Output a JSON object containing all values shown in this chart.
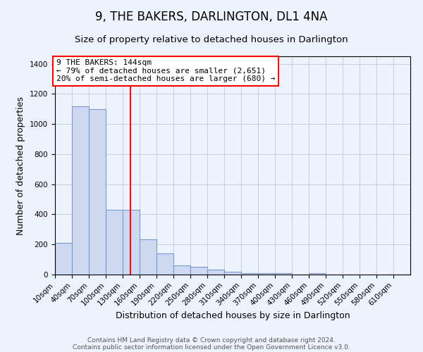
{
  "title": "9, THE BAKERS, DARLINGTON, DL1 4NA",
  "subtitle": "Size of property relative to detached houses in Darlington",
  "xlabel": "Distribution of detached houses by size in Darlington",
  "ylabel": "Number of detached properties",
  "bar_color": "#ccd9f0",
  "bar_edge_color": "#7799cc",
  "background_color": "#eef2fc",
  "grid_color": "#c8cce0",
  "red_line_x": 144,
  "annotation_title": "9 THE BAKERS: 144sqm",
  "annotation_line1": "← 79% of detached houses are smaller (2,651)",
  "annotation_line2": "20% of semi-detached houses are larger (680) →",
  "footer1": "Contains HM Land Registry data © Crown copyright and database right 2024.",
  "footer2": "Contains public sector information licensed under the Open Government Licence v3.0.",
  "bin_starts": [
    10,
    40,
    70,
    100,
    130,
    160,
    190,
    220,
    250,
    280,
    310,
    340,
    370,
    400,
    430,
    460,
    490,
    520,
    550,
    580,
    610
  ],
  "bin_width": 30,
  "counts": [
    210,
    1120,
    1100,
    430,
    430,
    235,
    140,
    60,
    50,
    35,
    20,
    10,
    10,
    10,
    0,
    10,
    0,
    0,
    0,
    0,
    0
  ],
  "ylim": [
    0,
    1450
  ],
  "yticks": [
    0,
    200,
    400,
    600,
    800,
    1000,
    1200,
    1400
  ],
  "xlim": [
    10,
    640
  ],
  "title_fontsize": 12,
  "subtitle_fontsize": 9.5,
  "axis_label_fontsize": 9,
  "tick_fontsize": 7.5,
  "annotation_fontsize": 8,
  "footer_fontsize": 6.5
}
